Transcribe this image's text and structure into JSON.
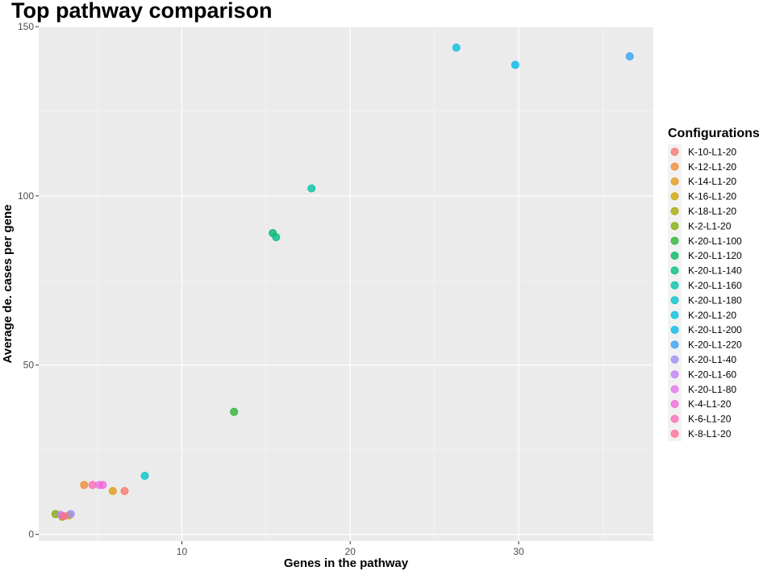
{
  "chart_data": {
    "type": "scatter",
    "title": "Top pathway comparison",
    "xlabel": "Genes in the pathway",
    "ylabel": "Average de. cases per gene",
    "xlim": [
      1.5,
      38
    ],
    "ylim": [
      -2,
      150
    ],
    "xticks": [
      10,
      20,
      30
    ],
    "yticks": [
      0,
      50,
      100,
      150
    ],
    "grid": true,
    "legend": {
      "title": "Configurations",
      "position": "right"
    },
    "series": [
      {
        "name": "K-10-L1-20",
        "color": "#f8766d",
        "points": [
          [
            6.6,
            12.8
          ]
        ]
      },
      {
        "name": "K-12-L1-20",
        "color": "#ef8a33",
        "points": [
          [
            4.2,
            14.6
          ]
        ]
      },
      {
        "name": "K-14-L1-20",
        "color": "#e19a13",
        "points": [
          [
            5.9,
            12.8
          ]
        ]
      },
      {
        "name": "K-16-L1-20",
        "color": "#cda500",
        "points": [
          [
            3.3,
            5.6
          ]
        ]
      },
      {
        "name": "K-18-L1-20",
        "color": "#a9a800",
        "points": [
          [
            2.9,
            5.2
          ]
        ]
      },
      {
        "name": "K-2-L1-20",
        "color": "#7cae00",
        "points": [
          [
            2.5,
            6.0
          ]
        ]
      },
      {
        "name": "K-20-L1-100",
        "color": "#2ab22f",
        "points": [
          [
            13.1,
            36.2
          ]
        ]
      },
      {
        "name": "K-20-L1-120",
        "color": "#00b566",
        "points": [
          [
            15.4,
            89.0
          ]
        ]
      },
      {
        "name": "K-20-L1-140",
        "color": "#00bd84",
        "points": [
          [
            15.6,
            87.8
          ]
        ]
      },
      {
        "name": "K-20-L1-160",
        "color": "#00c1a6",
        "points": [
          [
            17.7,
            102.2
          ]
        ]
      },
      {
        "name": "K-20-L1-180",
        "color": "#00c2ca",
        "points": [
          [
            7.8,
            17.3
          ]
        ]
      },
      {
        "name": "K-20-L1-20",
        "color": "#00bfdc",
        "points": [
          [
            26.3,
            143.8
          ]
        ]
      },
      {
        "name": "K-20-L1-200",
        "color": "#00b9eb",
        "points": [
          [
            29.8,
            138.7
          ]
        ]
      },
      {
        "name": "K-20-L1-220",
        "color": "#35a2f2",
        "points": [
          [
            36.6,
            141.2
          ]
        ]
      },
      {
        "name": "K-20-L1-40",
        "color": "#9b8df5",
        "points": [
          [
            3.4,
            6.0
          ]
        ]
      },
      {
        "name": "K-20-L1-60",
        "color": "#c27ff5",
        "points": [
          [
            2.8,
            5.8
          ]
        ]
      },
      {
        "name": "K-20-L1-80",
        "color": "#e872ec",
        "points": [
          [
            5.1,
            14.6
          ]
        ]
      },
      {
        "name": "K-4-L1-20",
        "color": "#f266d8",
        "points": [
          [
            5.3,
            14.6
          ]
        ]
      },
      {
        "name": "K-6-L1-20",
        "color": "#fb6ab6",
        "points": [
          [
            4.7,
            14.6
          ]
        ]
      },
      {
        "name": "K-8-L1-20",
        "color": "#ff6c91",
        "points": [
          [
            3.0,
            5.4
          ]
        ]
      }
    ]
  }
}
